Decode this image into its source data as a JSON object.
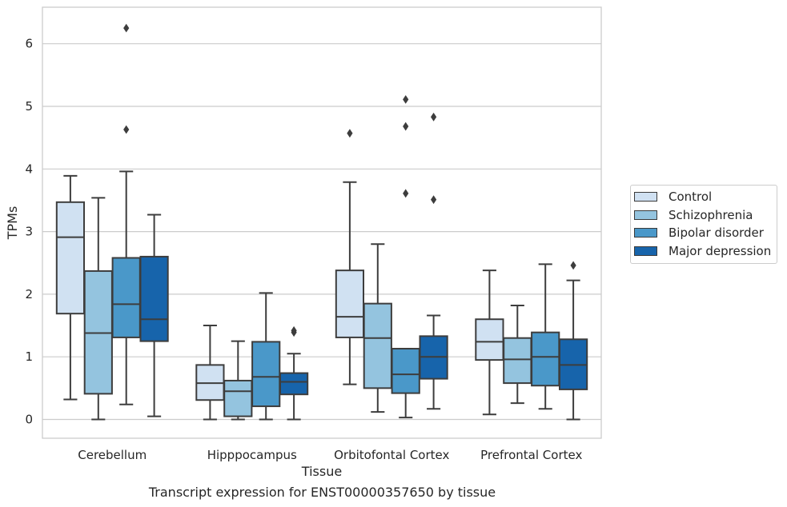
{
  "chart_data": {
    "type": "box",
    "caption": "Transcript expression for ENST00000357650 by tissue",
    "xlabel": "Tissue",
    "ylabel": "TPMs",
    "ylim": [
      -0.3,
      6.6
    ],
    "yticks": [
      "0",
      "1",
      "2",
      "3",
      "4",
      "5",
      "6"
    ],
    "grid": true,
    "legend_position": "right",
    "categories": [
      "Cerebellum",
      "Hipppocampus",
      "Orbitofontal Cortex",
      "Prefrontal Cortex"
    ],
    "series": [
      {
        "name": "Control",
        "color": "#d0e1f2",
        "boxes": [
          {
            "whislo": 0.32,
            "q1": 1.69,
            "med": 2.91,
            "q3": 3.47,
            "whishi": 3.89,
            "fliers": []
          },
          {
            "whislo": 0.0,
            "q1": 0.31,
            "med": 0.58,
            "q3": 0.87,
            "whishi": 1.5,
            "fliers": []
          },
          {
            "whislo": 0.56,
            "q1": 1.31,
            "med": 1.64,
            "q3": 2.38,
            "whishi": 3.79,
            "fliers": [
              4.57
            ]
          },
          {
            "whislo": 0.08,
            "q1": 0.95,
            "med": 1.24,
            "q3": 1.6,
            "whishi": 2.38,
            "fliers": []
          }
        ]
      },
      {
        "name": "Schizophrenia",
        "color": "#94c4df",
        "boxes": [
          {
            "whislo": 0.0,
            "q1": 0.41,
            "med": 1.38,
            "q3": 2.37,
            "whishi": 3.54,
            "fliers": []
          },
          {
            "whislo": 0.0,
            "q1": 0.05,
            "med": 0.45,
            "q3": 0.62,
            "whishi": 1.25,
            "fliers": []
          },
          {
            "whislo": 0.12,
            "q1": 0.5,
            "med": 1.3,
            "q3": 1.85,
            "whishi": 2.8,
            "fliers": []
          },
          {
            "whislo": 0.26,
            "q1": 0.58,
            "med": 0.96,
            "q3": 1.3,
            "whishi": 1.82,
            "fliers": []
          }
        ]
      },
      {
        "name": "Bipolar disorder",
        "color": "#4a98c9",
        "boxes": [
          {
            "whislo": 0.24,
            "q1": 1.31,
            "med": 1.84,
            "q3": 2.58,
            "whishi": 3.96,
            "fliers": [
              4.63,
              6.25
            ]
          },
          {
            "whislo": 0.0,
            "q1": 0.21,
            "med": 0.68,
            "q3": 1.24,
            "whishi": 2.02,
            "fliers": []
          },
          {
            "whislo": 0.03,
            "q1": 0.42,
            "med": 0.72,
            "q3": 1.13,
            "whishi": 1.13,
            "fliers": [
              3.61,
              4.68,
              5.11
            ]
          },
          {
            "whislo": 0.17,
            "q1": 0.54,
            "med": 1.0,
            "q3": 1.39,
            "whishi": 2.48,
            "fliers": []
          }
        ]
      },
      {
        "name": "Major depression",
        "color": "#1764ab",
        "boxes": [
          {
            "whislo": 0.05,
            "q1": 1.25,
            "med": 1.6,
            "q3": 2.6,
            "whishi": 3.27,
            "fliers": []
          },
          {
            "whislo": 0.0,
            "q1": 0.4,
            "med": 0.6,
            "q3": 0.74,
            "whishi": 1.05,
            "fliers": [
              1.39,
              1.42
            ]
          },
          {
            "whislo": 0.17,
            "q1": 0.65,
            "med": 1.0,
            "q3": 1.33,
            "whishi": 1.66,
            "fliers": [
              3.51,
              4.83
            ]
          },
          {
            "whislo": 0.0,
            "q1": 0.48,
            "med": 0.87,
            "q3": 1.28,
            "whishi": 2.22,
            "fliers": [
              2.46
            ]
          }
        ]
      }
    ]
  }
}
